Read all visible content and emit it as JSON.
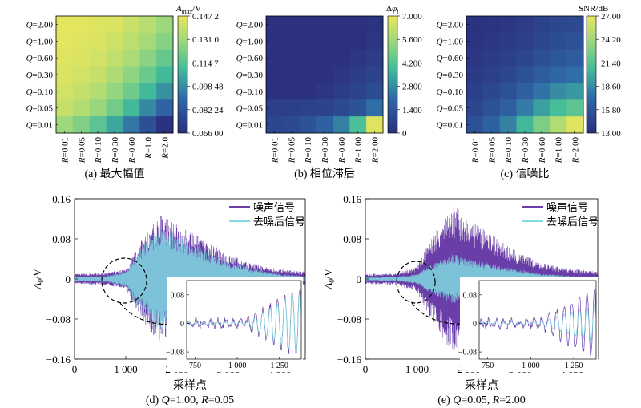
{
  "heatmap_panels": [
    {
      "caption": "(a) 最大幅值",
      "colorbar_title": "A_max/V",
      "colorbar_ticks": [
        "0.147 2",
        "0.131 0",
        "0.114 7",
        "0.098 48",
        "0.082 24",
        "0.066 00"
      ],
      "colors": {
        "low": "#2b2e7c",
        "mid": "#43bd9a",
        "high": "#e8e65c"
      }
    },
    {
      "caption": "(b) 相位滞后",
      "colorbar_title": "Δφi",
      "colorbar_ticks": [
        "7.000",
        "5.600",
        "4.200",
        "2.800",
        "1.400",
        "0"
      ],
      "colors": {
        "low": "#2b2e7c",
        "mid": "#43bd9a",
        "high": "#e8e65c"
      }
    },
    {
      "caption": "(c) 信噪比",
      "colorbar_title": "SNR/dB",
      "colorbar_ticks": [
        "27.00",
        "24.20",
        "21.40",
        "18.60",
        "15.80",
        "13.00"
      ],
      "colors": {
        "low": "#2b2e7c",
        "mid": "#43bd9a",
        "high": "#e8e65c"
      }
    }
  ],
  "signal_panels": [
    {
      "caption": "(d) Q=1.00, R=0.05",
      "legend": [
        "噪声信号",
        "去噪后信号"
      ],
      "xlabel": "采样点",
      "ylabel": "A0/V",
      "x_ticks": [
        "0",
        "1 000",
        "2 000",
        "3 000",
        "4 000"
      ],
      "y_ticks": [
        "0.16",
        "0.08",
        "0",
        "−0.08",
        "−0.16"
      ],
      "inset_x_ticks": [
        "750",
        "1 000",
        "1 250"
      ],
      "inset_y_ticks": [
        "0.08",
        "0",
        "−0.08"
      ],
      "colors": {
        "noisy": "#6a3ea8",
        "denoised": "#7fd9e0"
      }
    },
    {
      "caption": "(e) Q=0.05, R=2.00",
      "legend": [
        "噪声信号",
        "去噪后信号"
      ],
      "xlabel": "采样点",
      "ylabel": "A0/V",
      "x_ticks": [
        "0",
        "1 000",
        "2 000",
        "3 000",
        "4 000"
      ],
      "y_ticks": [
        "0.16",
        "0.08",
        "0",
        "−0.08",
        "−0.16"
      ],
      "inset_x_ticks": [
        "750",
        "1 000",
        "1 250"
      ],
      "inset_y_ticks": [
        "0.08",
        "0",
        "−0.08"
      ],
      "colors": {
        "noisy": "#6a3ea8",
        "denoised": "#7fd9e0"
      }
    }
  ],
  "chart_data": [
    {
      "type": "heatmap",
      "colorbar_title": "A_max/V",
      "y_categories": [
        "Q=2.00",
        "Q=1.00",
        "Q=0.60",
        "Q=0.30",
        "Q=0.10",
        "Q=0.05",
        "Q=0.01"
      ],
      "x_categories": [
        "R=0.01",
        "R=0.05",
        "R=0.10",
        "R=0.30",
        "R=0.60",
        "R=1.0",
        "R=2.0"
      ],
      "values": [
        [
          0.146,
          0.146,
          0.145,
          0.144,
          0.14,
          0.136,
          0.13
        ],
        [
          0.146,
          0.145,
          0.144,
          0.141,
          0.137,
          0.132,
          0.125
        ],
        [
          0.145,
          0.144,
          0.142,
          0.138,
          0.133,
          0.126,
          0.118
        ],
        [
          0.144,
          0.142,
          0.139,
          0.134,
          0.127,
          0.119,
          0.11
        ],
        [
          0.142,
          0.139,
          0.135,
          0.128,
          0.12,
          0.11,
          0.1
        ],
        [
          0.139,
          0.135,
          0.129,
          0.121,
          0.11,
          0.098,
          0.088
        ],
        [
          0.13,
          0.124,
          0.116,
          0.105,
          0.094,
          0.08,
          0.068
        ]
      ],
      "zlim": [
        0.066,
        0.1472
      ]
    },
    {
      "type": "heatmap",
      "colorbar_title": "Δφi",
      "y_categories": [
        "Q=2.00",
        "Q=1.00",
        "Q=0.60",
        "Q=0.30",
        "Q=0.10",
        "Q=0.05",
        "Q=0.01"
      ],
      "x_categories": [
        "R=0.01",
        "R=0.05",
        "R=0.10",
        "R=0.30",
        "R=0.60",
        "R=1.00",
        "R=2.00"
      ],
      "values": [
        [
          0.1,
          0.1,
          0.1,
          0.1,
          0.1,
          0.1,
          0.2
        ],
        [
          0.1,
          0.1,
          0.1,
          0.1,
          0.1,
          0.1,
          0.3
        ],
        [
          0.1,
          0.1,
          0.1,
          0.1,
          0.1,
          0.3,
          0.5
        ],
        [
          0.1,
          0.1,
          0.1,
          0.1,
          0.3,
          0.5,
          0.8
        ],
        [
          0.1,
          0.1,
          0.1,
          0.3,
          0.5,
          0.8,
          1.1
        ],
        [
          0.6,
          0.6,
          0.7,
          0.8,
          1.0,
          1.3,
          2.2
        ],
        [
          0.9,
          1.0,
          1.3,
          1.8,
          2.6,
          4.0,
          6.8
        ]
      ],
      "zlim": [
        0,
        7
      ]
    },
    {
      "type": "heatmap",
      "colorbar_title": "SNR/dB",
      "y_categories": [
        "Q=2.00",
        "Q=1.00",
        "Q=0.60",
        "Q=0.30",
        "Q=0.10",
        "Q=0.05",
        "Q=0.01"
      ],
      "x_categories": [
        "R=0.01",
        "R=0.05",
        "R=0.10",
        "R=0.30",
        "R=0.60",
        "R=1.00",
        "R=2.00"
      ],
      "values": [
        [
          13.3,
          13.4,
          13.6,
          14.0,
          14.4,
          14.8,
          15.0
        ],
        [
          13.4,
          13.6,
          13.9,
          14.3,
          14.8,
          15.2,
          15.5
        ],
        [
          13.6,
          13.9,
          14.3,
          14.8,
          15.4,
          15.9,
          16.3
        ],
        [
          13.9,
          14.3,
          14.8,
          15.5,
          16.3,
          17.0,
          17.4
        ],
        [
          14.3,
          14.8,
          15.5,
          16.5,
          17.6,
          18.6,
          19.2
        ],
        [
          14.8,
          15.5,
          16.5,
          18.0,
          19.5,
          20.8,
          21.6
        ],
        [
          15.5,
          16.6,
          18.2,
          20.5,
          22.8,
          24.8,
          26.5
        ]
      ],
      "zlim": [
        13.0,
        27.0
      ]
    },
    {
      "type": "line",
      "xlim": [
        0,
        4500
      ],
      "ylim": [
        -0.16,
        0.16
      ],
      "series": [
        {
          "name": "噪声信号",
          "x": [
            0,
            600,
            1000,
            1200,
            1500,
            1700,
            2000,
            2500,
            3000,
            3500,
            4000,
            4500
          ],
          "amplitude": [
            0.01,
            0.012,
            0.02,
            0.06,
            0.11,
            0.13,
            0.11,
            0.08,
            0.05,
            0.03,
            0.02,
            0.015
          ]
        },
        {
          "name": "去噪后信号",
          "x": [
            0,
            600,
            1000,
            1200,
            1500,
            1700,
            2000,
            2500,
            3000,
            3500,
            4000,
            4500
          ],
          "amplitude": [
            0.004,
            0.006,
            0.015,
            0.05,
            0.09,
            0.11,
            0.09,
            0.06,
            0.035,
            0.02,
            0.01,
            0.006
          ]
        }
      ],
      "inset": {
        "xlim": [
          700,
          1380
        ],
        "ylim": [
          -0.1,
          0.12
        ]
      }
    },
    {
      "type": "line",
      "xlim": [
        0,
        4500
      ],
      "ylim": [
        -0.16,
        0.16
      ],
      "series": [
        {
          "name": "噪声信号",
          "x": [
            0,
            600,
            1000,
            1200,
            1500,
            1700,
            2000,
            2500,
            3000,
            3500,
            4000,
            4500
          ],
          "amplitude": [
            0.01,
            0.012,
            0.025,
            0.07,
            0.12,
            0.15,
            0.12,
            0.085,
            0.05,
            0.03,
            0.02,
            0.015
          ]
        },
        {
          "name": "去噪后信号",
          "x": [
            0,
            600,
            1000,
            1200,
            1500,
            1700,
            2000,
            2500,
            3000,
            3500,
            4000,
            4500
          ],
          "amplitude": [
            0.003,
            0.004,
            0.01,
            0.025,
            0.04,
            0.05,
            0.04,
            0.03,
            0.018,
            0.01,
            0.006,
            0.004
          ]
        }
      ],
      "inset": {
        "xlim": [
          700,
          1380
        ],
        "ylim": [
          -0.1,
          0.12
        ]
      }
    }
  ]
}
